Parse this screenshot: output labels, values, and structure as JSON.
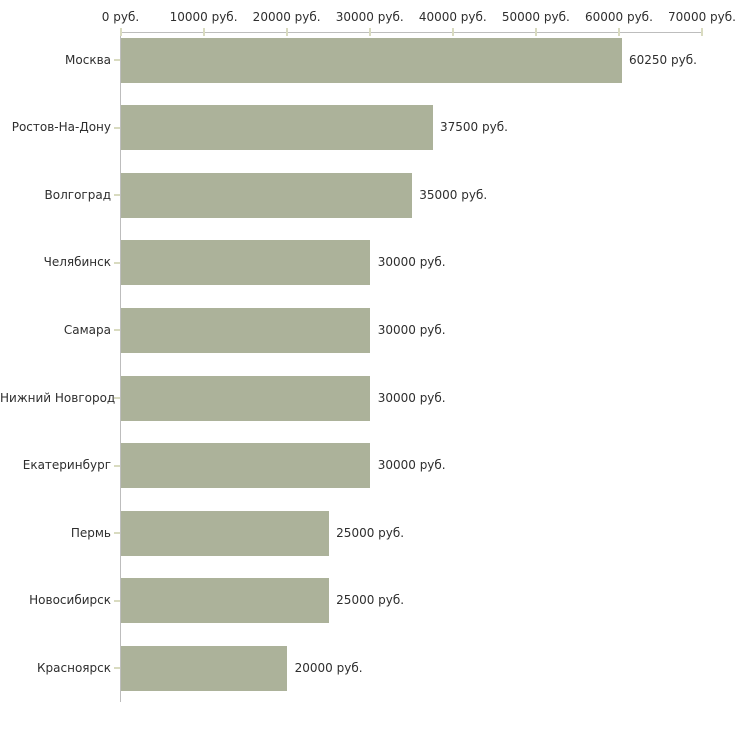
{
  "chart_data": {
    "type": "bar",
    "orientation": "horizontal",
    "title": "",
    "xlabel": "",
    "ylabel": "",
    "unit": "руб.",
    "categories": [
      "Москва",
      "Ростов-На-Дону",
      "Волгоград",
      "Челябинск",
      "Самара",
      "Нижний Новгород",
      "Екатеринбург",
      "Пермь",
      "Новосибирск",
      "Красноярск"
    ],
    "values": [
      60250,
      37500,
      35000,
      30000,
      30000,
      30000,
      30000,
      25000,
      25000,
      20000
    ],
    "value_labels": [
      "60250 руб.",
      "37500 руб.",
      "35000 руб.",
      "30000 руб.",
      "30000 руб.",
      "30000 руб.",
      "30000 руб.",
      "25000 руб.",
      "25000 руб.",
      "20000 руб."
    ],
    "x_ticks": [
      0,
      10000,
      20000,
      30000,
      40000,
      50000,
      60000,
      70000
    ],
    "x_tick_labels": [
      "0 руб.",
      "10000 руб.",
      "20000 руб.",
      "30000 руб.",
      "40000 руб.",
      "50000 руб.",
      "60000 руб.",
      "70000 руб."
    ],
    "xlim": [
      0,
      70000
    ],
    "grid": false,
    "legend": false,
    "axis_ticks_position": "top",
    "colors": {
      "bar": "#acb29a",
      "axis": "#bdbdbd",
      "tick": "#d9dbc0",
      "text": "#2e2e2e",
      "background": "#ffffff"
    }
  }
}
